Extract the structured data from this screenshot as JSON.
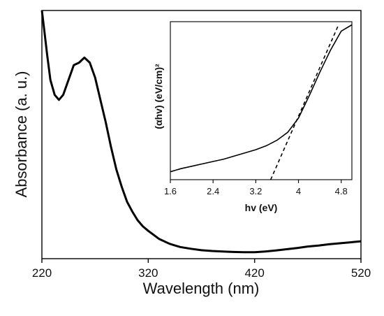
{
  "chart_data": [
    {
      "type": "line",
      "title": "",
      "xlabel": "Wavelength (nm)",
      "ylabel": "Absorbance (a. u.)",
      "xlim": [
        220,
        520
      ],
      "ylim": [
        0,
        1
      ],
      "x_ticks": [
        "220",
        "320",
        "420",
        "520"
      ],
      "y_ticks": [],
      "grid": false,
      "series": [
        {
          "x": [
            220,
            222,
            225,
            228,
            232,
            236,
            240,
            245,
            250,
            255,
            260,
            265,
            270,
            275,
            280,
            285,
            290,
            295,
            300,
            305,
            310,
            315,
            320,
            330,
            340,
            350,
            360,
            370,
            380,
            390,
            400,
            410,
            420,
            430,
            440,
            450,
            460,
            470,
            480,
            490,
            500,
            510,
            520
          ],
          "y": [
            1.0,
            0.93,
            0.82,
            0.72,
            0.66,
            0.64,
            0.66,
            0.72,
            0.78,
            0.79,
            0.81,
            0.79,
            0.73,
            0.64,
            0.55,
            0.45,
            0.36,
            0.29,
            0.23,
            0.19,
            0.155,
            0.13,
            0.112,
            0.08,
            0.06,
            0.047,
            0.04,
            0.034,
            0.031,
            0.029,
            0.027,
            0.026,
            0.026,
            0.029,
            0.033,
            0.038,
            0.043,
            0.049,
            0.053,
            0.058,
            0.062,
            0.066,
            0.07
          ]
        }
      ]
    },
    {
      "type": "line",
      "title": "",
      "xlabel": "hv (eV)",
      "ylabel": "(αhv) (eV/cm)²",
      "xlim": [
        1.6,
        5.0
      ],
      "ylim": [
        0,
        1
      ],
      "x_ticks": [
        "1.6",
        "2.4",
        "3.2",
        "4",
        "4.8"
      ],
      "y_ticks": [],
      "grid": false,
      "series": [
        {
          "x": [
            1.6,
            1.8,
            2.0,
            2.2,
            2.4,
            2.6,
            2.8,
            3.0,
            3.2,
            3.4,
            3.6,
            3.8,
            4.0,
            4.2,
            4.4,
            4.6,
            4.8,
            5.0
          ],
          "y": [
            0.05,
            0.07,
            0.085,
            0.1,
            0.115,
            0.13,
            0.15,
            0.17,
            0.19,
            0.215,
            0.25,
            0.3,
            0.39,
            0.53,
            0.68,
            0.82,
            0.94,
            0.98
          ]
        },
        {
          "x": [
            3.35,
            4.75
          ],
          "y": [
            -0.1,
            0.98
          ],
          "style": "dashed"
        }
      ]
    }
  ]
}
